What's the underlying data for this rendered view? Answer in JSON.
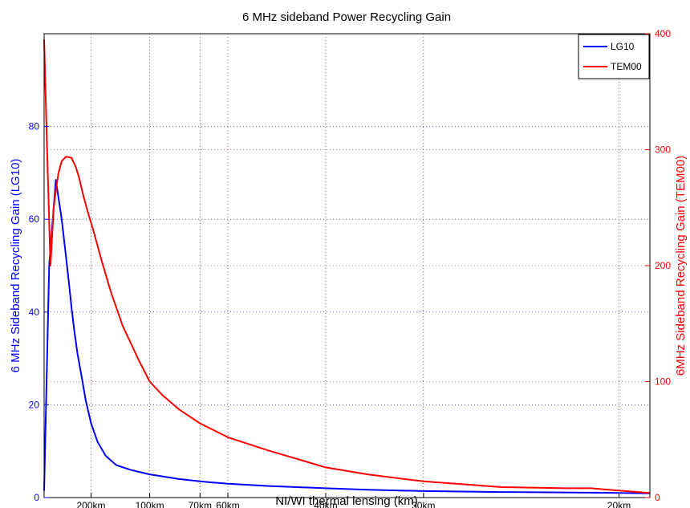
{
  "chart_data": {
    "type": "line",
    "title": "6 MHz sideband Power Recycling Gain",
    "xlabel": "NI/WI thermal lensing (km)",
    "ylabel_left": "6 MHz Sideband Recycling Gain (LG10)",
    "ylabel_right": "6MHz Sideband Recycling Gain (TEM00)",
    "x_scale": "reciprocal",
    "x_ticks": [
      {
        "value": 200,
        "label": "200km"
      },
      {
        "value": 100,
        "label": "100km"
      },
      {
        "value": 70,
        "label": "70km"
      },
      {
        "value": 60,
        "label": "60km"
      },
      {
        "value": 40,
        "label": "40km"
      },
      {
        "value": 30,
        "label": "30km"
      },
      {
        "value": 20,
        "label": "20km"
      }
    ],
    "xlim": [
      1000,
      19
    ],
    "ylim_left": [
      0,
      100
    ],
    "ylim_right": [
      0,
      400
    ],
    "yticks_left": [
      "0",
      "20",
      "40",
      "60",
      "80"
    ],
    "yticks_right": [
      "0",
      "100",
      "200",
      "300",
      "400"
    ],
    "grid": true,
    "legend_position": "top-right",
    "colors": {
      "LG10": "#0000ff",
      "TEM00": "#ff0000"
    },
    "series": [
      {
        "name": "LG10",
        "axis": "left",
        "x": [
          1000,
          700,
          500,
          400,
          350,
          320,
          300,
          280,
          260,
          240,
          220,
          200,
          180,
          160,
          140,
          120,
          100,
          80,
          70,
          60,
          50,
          40,
          35,
          30,
          25,
          22,
          20,
          19
        ],
        "y": [
          1.5,
          50,
          68.5,
          60,
          52,
          46,
          41,
          36,
          31,
          26.5,
          21,
          16,
          12,
          9,
          7,
          6,
          5,
          4,
          3.5,
          3,
          2.5,
          2,
          1.7,
          1.4,
          1.2,
          1.1,
          1.0,
          0.9
        ]
      },
      {
        "name": "TEM00",
        "axis": "right",
        "x": [
          1000,
          800,
          650,
          550,
          500,
          450,
          400,
          350,
          300,
          270,
          250,
          230,
          210,
          190,
          170,
          150,
          130,
          110,
          100,
          90,
          80,
          70,
          60,
          50,
          40,
          35,
          30,
          25,
          22,
          21,
          20,
          19
        ],
        "y": [
          395,
          300,
          200,
          250,
          265,
          280,
          290,
          294,
          293,
          285,
          275,
          260,
          245,
          228,
          205,
          178,
          148,
          118,
          100,
          88,
          76,
          64,
          52,
          41,
          26,
          20,
          14,
          9,
          8,
          8,
          6,
          4
        ]
      }
    ]
  }
}
